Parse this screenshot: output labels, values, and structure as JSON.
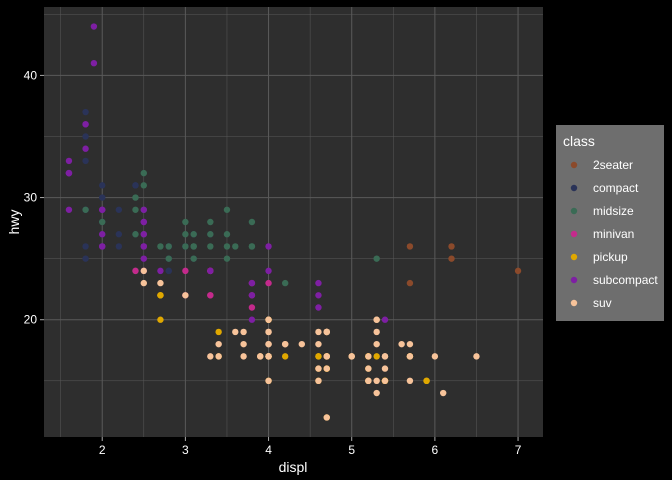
{
  "chart_data": {
    "type": "scatter",
    "xlabel": "displ",
    "ylabel": "hwy",
    "xlim": [
      1.3,
      7.3
    ],
    "ylim": [
      10.4,
      45.6
    ],
    "x_ticks": [
      2,
      3,
      4,
      5,
      6,
      7
    ],
    "y_ticks": [
      20,
      30,
      40
    ],
    "grid": true,
    "legend": {
      "title": "class",
      "placement": "right"
    },
    "colors": {
      "background": "#000000",
      "panel": "#2e2e2e",
      "grid": "#5a5a5a",
      "legend_box": "#6e6e6e"
    },
    "series": [
      {
        "name": "2seater",
        "color": "#8b4a2b",
        "points": [
          [
            5.7,
            26
          ],
          [
            5.7,
            23
          ],
          [
            6.2,
            26
          ],
          [
            6.2,
            25
          ],
          [
            7.0,
            24
          ]
        ]
      },
      {
        "name": "compact",
        "color": "#2a3358",
        "points": [
          [
            1.8,
            29
          ],
          [
            1.8,
            29
          ],
          [
            2.0,
            31
          ],
          [
            2.0,
            30
          ],
          [
            2.8,
            26
          ],
          [
            2.8,
            26
          ],
          [
            3.1,
            27
          ],
          [
            1.8,
            26
          ],
          [
            1.8,
            25
          ],
          [
            2.0,
            28
          ],
          [
            2.0,
            27
          ],
          [
            2.8,
            25
          ],
          [
            2.8,
            25
          ],
          [
            3.1,
            25
          ],
          [
            2.2,
            27
          ],
          [
            2.2,
            29
          ],
          [
            2.4,
            31
          ],
          [
            2.4,
            31
          ],
          [
            3.0,
            26
          ],
          [
            3.0,
            26
          ],
          [
            3.3,
            27
          ],
          [
            1.8,
            33
          ],
          [
            1.8,
            37
          ],
          [
            1.8,
            35
          ],
          [
            2.0,
            29
          ],
          [
            2.0,
            26
          ],
          [
            2.5,
            29
          ],
          [
            2.5,
            29
          ],
          [
            2.8,
            24
          ],
          [
            2.8,
            24
          ],
          [
            2.5,
            29
          ],
          [
            2.5,
            26
          ],
          [
            2.5,
            25
          ],
          [
            2.2,
            26
          ],
          [
            2.4,
            27
          ]
        ]
      },
      {
        "name": "midsize",
        "color": "#3a6b55",
        "points": [
          [
            2.8,
            26
          ],
          [
            3.1,
            26
          ],
          [
            4.2,
            23
          ],
          [
            2.4,
            27
          ],
          [
            2.4,
            30
          ],
          [
            3.1,
            26
          ],
          [
            3.5,
            29
          ],
          [
            3.6,
            26
          ],
          [
            2.4,
            24
          ],
          [
            3.0,
            26
          ],
          [
            3.3,
            26
          ],
          [
            3.3,
            27
          ],
          [
            3.8,
            28
          ],
          [
            3.8,
            26
          ],
          [
            3.8,
            26
          ],
          [
            5.3,
            25
          ],
          [
            2.5,
            32
          ],
          [
            2.5,
            31
          ],
          [
            2.5,
            29
          ],
          [
            3.0,
            27
          ],
          [
            2.4,
            29
          ],
          [
            2.5,
            27
          ],
          [
            3.5,
            26
          ],
          [
            3.0,
            28
          ],
          [
            1.8,
            29
          ],
          [
            2.0,
            28
          ],
          [
            2.0,
            26
          ],
          [
            3.1,
            25
          ],
          [
            3.1,
            27
          ],
          [
            3.5,
            27
          ],
          [
            3.5,
            25
          ],
          [
            2.7,
            26
          ],
          [
            2.8,
            25
          ],
          [
            3.3,
            28
          ]
        ]
      },
      {
        "name": "minivan",
        "color": "#c42a8c",
        "points": [
          [
            2.4,
            24
          ],
          [
            3.0,
            24
          ],
          [
            3.3,
            22
          ],
          [
            3.3,
            22
          ],
          [
            3.3,
            24
          ],
          [
            3.3,
            24
          ],
          [
            3.3,
            24
          ],
          [
            3.8,
            22
          ],
          [
            3.8,
            21
          ],
          [
            3.8,
            23
          ],
          [
            4.0,
            23
          ],
          [
            3.0,
            22
          ]
        ]
      },
      {
        "name": "pickup",
        "color": "#e0a800",
        "points": [
          [
            2.7,
            20
          ],
          [
            2.7,
            22
          ],
          [
            3.4,
            17
          ],
          [
            3.4,
            19
          ],
          [
            3.9,
            17
          ],
          [
            4.0,
            20
          ],
          [
            4.0,
            17
          ],
          [
            4.7,
            17
          ],
          [
            4.7,
            16
          ],
          [
            4.7,
            17
          ],
          [
            5.2,
            17
          ],
          [
            5.2,
            15
          ],
          [
            5.7,
            17
          ],
          [
            5.9,
            15
          ],
          [
            4.7,
            12
          ],
          [
            4.7,
            17
          ],
          [
            5.2,
            15
          ],
          [
            5.7,
            17
          ],
          [
            5.9,
            15
          ],
          [
            4.6,
            17
          ],
          [
            5.4,
            15
          ],
          [
            5.4,
            15
          ],
          [
            4.0,
            17
          ],
          [
            4.2,
            17
          ],
          [
            4.6,
            16
          ],
          [
            4.6,
            15
          ],
          [
            4.6,
            17
          ],
          [
            5.4,
            15
          ],
          [
            5.4,
            15
          ],
          [
            4.0,
            20
          ],
          [
            4.0,
            17
          ],
          [
            4.0,
            15
          ],
          [
            4.7,
            16
          ],
          [
            4.7,
            16
          ],
          [
            5.7,
            17
          ],
          [
            2.7,
            22
          ],
          [
            4.0,
            20
          ],
          [
            2.7,
            22
          ],
          [
            4.0,
            17
          ],
          [
            4.7,
            17
          ],
          [
            5.2,
            17
          ],
          [
            5.0,
            17
          ],
          [
            4.7,
            19
          ],
          [
            5.2,
            16
          ],
          [
            5.2,
            17
          ],
          [
            5.3,
            17
          ]
        ]
      },
      {
        "name": "subcompact",
        "color": "#7e1fa3",
        "points": [
          [
            1.6,
            33
          ],
          [
            1.6,
            32
          ],
          [
            1.6,
            32
          ],
          [
            1.6,
            29
          ],
          [
            1.6,
            32
          ],
          [
            1.8,
            34
          ],
          [
            1.8,
            36
          ],
          [
            1.8,
            36
          ],
          [
            2.0,
            29
          ],
          [
            2.0,
            26
          ],
          [
            2.0,
            27
          ],
          [
            2.5,
            26
          ],
          [
            2.5,
            29
          ],
          [
            2.5,
            28
          ],
          [
            2.5,
            27
          ],
          [
            2.5,
            26
          ],
          [
            2.5,
            25
          ],
          [
            2.5,
            24
          ],
          [
            3.3,
            24
          ],
          [
            3.8,
            23
          ],
          [
            3.8,
            22
          ],
          [
            3.8,
            20
          ],
          [
            4.0,
            26
          ],
          [
            4.0,
            24
          ],
          [
            4.6,
            23
          ],
          [
            4.6,
            22
          ],
          [
            4.6,
            21
          ],
          [
            5.4,
            20
          ],
          [
            1.9,
            44
          ],
          [
            1.9,
            41
          ],
          [
            2.0,
            26
          ],
          [
            2.0,
            29
          ],
          [
            2.7,
            24
          ],
          [
            2.5,
            28
          ]
        ]
      },
      {
        "name": "suv",
        "color": "#f7c39a",
        "points": [
          [
            5.3,
            20
          ],
          [
            5.3,
            15
          ],
          [
            5.3,
            20
          ],
          [
            5.7,
            17
          ],
          [
            6.0,
            17
          ],
          [
            5.7,
            15
          ],
          [
            5.7,
            17
          ],
          [
            6.5,
            17
          ],
          [
            5.3,
            19
          ],
          [
            5.3,
            14
          ],
          [
            3.7,
            19
          ],
          [
            3.7,
            18
          ],
          [
            3.9,
            17
          ],
          [
            3.9,
            17
          ],
          [
            4.7,
            19
          ],
          [
            4.7,
            19
          ],
          [
            4.7,
            12
          ],
          [
            5.2,
            17
          ],
          [
            5.2,
            15
          ],
          [
            3.7,
            17
          ],
          [
            4.7,
            19
          ],
          [
            4.7,
            17
          ],
          [
            4.7,
            17
          ],
          [
            5.2,
            16
          ],
          [
            5.2,
            15
          ],
          [
            5.6,
            18
          ],
          [
            4.0,
            17
          ],
          [
            4.0,
            19
          ],
          [
            4.0,
            20
          ],
          [
            4.0,
            19
          ],
          [
            4.2,
            18
          ],
          [
            4.4,
            18
          ],
          [
            4.6,
            19
          ],
          [
            4.6,
            16
          ],
          [
            4.6,
            15
          ],
          [
            5.4,
            17
          ],
          [
            5.4,
            15
          ],
          [
            5.4,
            16
          ],
          [
            5.0,
            17
          ],
          [
            4.0,
            15
          ],
          [
            4.0,
            17
          ],
          [
            4.0,
            17
          ],
          [
            4.6,
            18
          ],
          [
            5.0,
            17
          ],
          [
            2.5,
            24
          ],
          [
            2.5,
            23
          ],
          [
            2.7,
            23
          ],
          [
            3.0,
            22
          ],
          [
            3.4,
            17
          ],
          [
            3.4,
            18
          ],
          [
            4.0,
            18
          ],
          [
            4.7,
            19
          ],
          [
            5.7,
            18
          ],
          [
            6.1,
            14
          ],
          [
            4.0,
            18
          ],
          [
            4.7,
            16
          ],
          [
            3.3,
            17
          ],
          [
            5.3,
            18
          ],
          [
            3.6,
            19
          ],
          [
            4.0,
            20
          ],
          [
            5.4,
            17
          ],
          [
            4.2,
            18
          ]
        ]
      }
    ]
  }
}
